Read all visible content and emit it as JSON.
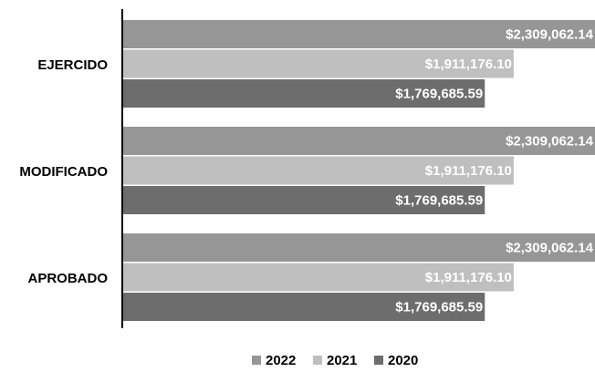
{
  "chart_data": {
    "type": "bar",
    "orientation": "horizontal",
    "title": "",
    "xlabel": "",
    "ylabel": "",
    "categories": [
      "EJERCIDO",
      "MODIFICADO",
      "APROBADO"
    ],
    "series": [
      {
        "name": "2022",
        "color": "#969696",
        "values": [
          2309062.14,
          2309062.14,
          2309062.14
        ],
        "labels": [
          "$2,309,062.14",
          "$2,309,062.14",
          "$2,309,062.14"
        ]
      },
      {
        "name": "2021",
        "color": "#bfbfbf",
        "values": [
          1911176.1,
          1911176.1,
          1911176.1
        ],
        "labels": [
          "$1,911,176.10",
          "$1,911,176.10",
          "$1,911,176.10"
        ]
      },
      {
        "name": "2020",
        "color": "#6d6d6d",
        "values": [
          1769685.59,
          1769685.59,
          1769685.59
        ],
        "labels": [
          "$1,769,685.59",
          "$1,769,685.59",
          "$1,769,685.59"
        ]
      }
    ],
    "xlim": [
      0,
      2309062.14
    ],
    "grid": false,
    "legend_position": "bottom"
  }
}
